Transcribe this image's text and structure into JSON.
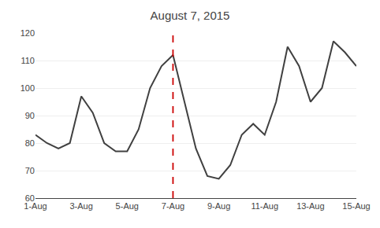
{
  "chart_data": {
    "type": "line",
    "title": "August 7, 2015",
    "x": [
      1,
      1.5,
      2,
      2.5,
      3,
      3.5,
      4,
      4.5,
      5,
      5.5,
      6,
      6.5,
      7,
      7.5,
      8,
      8.5,
      9,
      9.5,
      10,
      10.5,
      11,
      11.5,
      12,
      12.5,
      13,
      13.5,
      14,
      14.5,
      15
    ],
    "values": [
      83,
      80,
      78,
      80,
      97,
      91,
      80,
      77,
      77,
      85,
      100,
      108,
      112,
      95,
      78,
      68,
      67,
      72,
      83,
      87,
      83,
      95,
      115,
      108,
      95,
      100,
      117,
      113,
      108
    ],
    "color": "#404040",
    "xlim": [
      1,
      15
    ],
    "xticks": [
      {
        "value": 1,
        "label": "1-Aug"
      },
      {
        "value": 3,
        "label": "3-Aug"
      },
      {
        "value": 5,
        "label": "5-Aug"
      },
      {
        "value": 7,
        "label": "7-Aug"
      },
      {
        "value": 9,
        "label": "9-Aug"
      },
      {
        "value": 11,
        "label": "11-Aug"
      },
      {
        "value": 13,
        "label": "13-Aug"
      },
      {
        "value": 15,
        "label": "15-Aug"
      }
    ],
    "ylim": [
      60,
      120
    ],
    "yticks": [
      60,
      70,
      80,
      90,
      100,
      110,
      120
    ],
    "grid": "y",
    "vlines": [
      {
        "x": 7,
        "color": "#CC0000",
        "line_style": "dashed"
      }
    ]
  }
}
